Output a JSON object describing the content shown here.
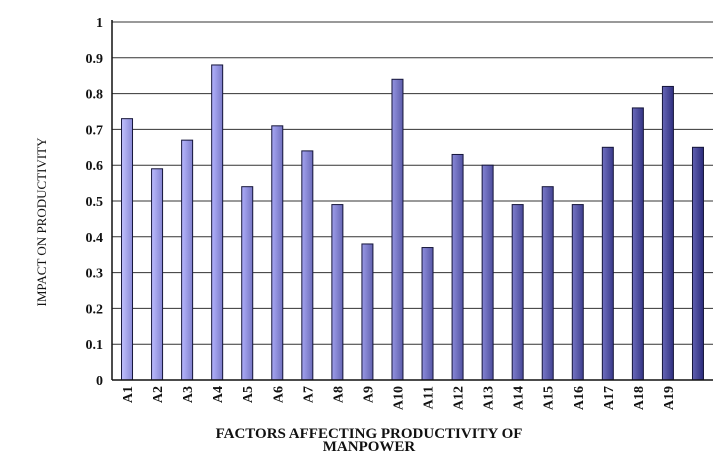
{
  "chart_data": {
    "type": "bar",
    "categories": [
      "A1",
      "A2",
      "A3",
      "A4",
      "A5",
      "A6",
      "A7",
      "A8",
      "A9",
      "A10",
      "A11",
      "A12",
      "A13",
      "A14",
      "A15",
      "A16",
      "A17",
      "A18",
      "A19",
      ""
    ],
    "values": [
      0.73,
      0.59,
      0.67,
      0.88,
      0.54,
      0.71,
      0.64,
      0.49,
      0.38,
      0.84,
      0.37,
      0.63,
      0.6,
      0.49,
      0.54,
      0.49,
      0.65,
      0.76,
      0.82,
      0.65
    ],
    "title": "",
    "xlabel_lines": [
      "FACTORS AFFECTING PRODUCTIVITY OF",
      "MANPOWER"
    ],
    "ylabel": "IMPACT ON PRODUCTIVITY",
    "ylim": [
      0,
      1
    ],
    "yticks": [
      "0",
      "0.1",
      "0.2",
      "0.3",
      "0.4",
      "0.5",
      "0.6",
      "0.7",
      "0.8",
      "0.9",
      "1"
    ],
    "grid": true,
    "legend": "none",
    "colors": {
      "bar_light": "#8a8ad6",
      "bar_dark": "#2a2a7a",
      "bar_stroke": "#15153a",
      "grid": "#333333",
      "axis": "#111111"
    }
  }
}
